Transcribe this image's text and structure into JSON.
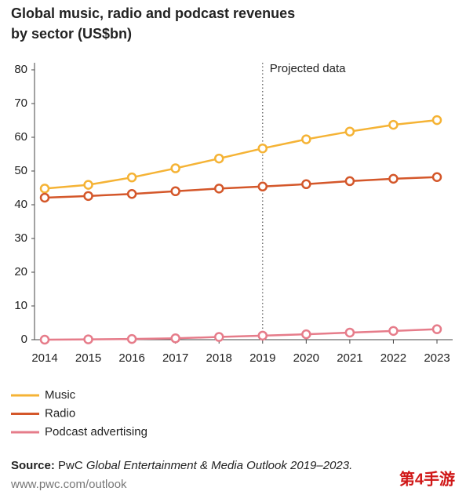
{
  "chart_data": {
    "type": "line",
    "title": [
      "Global music, radio and podcast revenues",
      "by sector (US$bn)"
    ],
    "categories": [
      "2014",
      "2015",
      "2016",
      "2017",
      "2018",
      "2019",
      "2020",
      "2021",
      "2022",
      "2023"
    ],
    "series": [
      {
        "name": "Music",
        "color": "#f5b335",
        "values": [
          44.8,
          45.9,
          48.1,
          50.8,
          53.7,
          56.7,
          59.4,
          61.7,
          63.7,
          65.1
        ]
      },
      {
        "name": "Radio",
        "color": "#d4572a",
        "values": [
          42.1,
          42.6,
          43.2,
          44.0,
          44.8,
          45.4,
          46.1,
          47.0,
          47.7,
          48.2
        ]
      },
      {
        "name": "Podcast advertising",
        "color": "#e67c8a",
        "values": [
          0.0,
          0.1,
          0.2,
          0.4,
          0.8,
          1.2,
          1.6,
          2.1,
          2.6,
          3.1
        ]
      }
    ],
    "ylim": [
      0,
      80
    ],
    "yticks": [
      0,
      10,
      20,
      30,
      40,
      50,
      60,
      70,
      80
    ],
    "grid": false,
    "annotation": {
      "text": "Projected data",
      "x": "2019"
    },
    "source": {
      "label": "Source:",
      "text": "PwC",
      "publication": "Global Entertainment & Media Outlook 2019–2023."
    },
    "url": "www.pwc.com/outlook",
    "watermark": "第4手游"
  }
}
